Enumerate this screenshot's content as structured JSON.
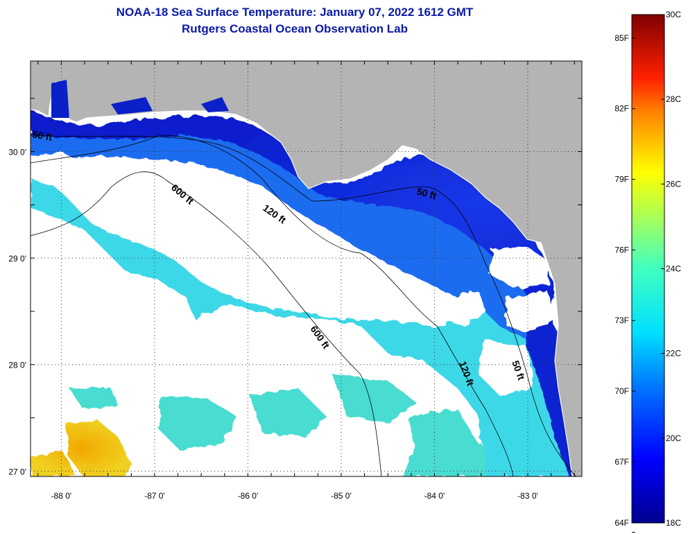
{
  "title": "NOAA-18 Sea Surface Temperature:  January 07, 2022 1612 GMT",
  "subtitle": "Rutgers Coastal Ocean Observation Lab",
  "map": {
    "lat_labels": [
      {
        "lat": 30,
        "text": "30 0'"
      },
      {
        "lat": 29,
        "text": "29 0'"
      },
      {
        "lat": 28,
        "text": "28 0'"
      },
      {
        "lat": 27,
        "text": "27 0'"
      }
    ],
    "lon_labels": [
      {
        "lon": -88,
        "text": "-88 0'"
      },
      {
        "lon": -87,
        "text": "-87 0'"
      },
      {
        "lon": -86,
        "text": "-86 0'"
      },
      {
        "lon": -85,
        "text": "-85 0'"
      },
      {
        "lon": -84,
        "text": "-84 0'"
      },
      {
        "lon": -83,
        "text": "-83 0'"
      }
    ],
    "lon_range": [
      -88.33,
      -82.42
    ],
    "lat_range": [
      26.95,
      30.85
    ],
    "contour_labels": [
      "50 ft",
      "120 ft",
      "600 ft",
      "600 ft",
      "120 ft",
      "50 ft",
      "50 ft"
    ]
  },
  "colorbar": {
    "min_c": 18,
    "max_c": 30,
    "celsius_labels": [
      {
        "v": 30,
        "text": "30C"
      },
      {
        "v": 28,
        "text": "28C"
      },
      {
        "v": 26,
        "text": "26C"
      },
      {
        "v": 24,
        "text": "24C"
      },
      {
        "v": 22,
        "text": "22C"
      },
      {
        "v": 20,
        "text": "20C"
      },
      {
        "v": 18,
        "text": "18C"
      }
    ],
    "fahrenheit_labels": [
      {
        "v": 85,
        "text": "85F"
      },
      {
        "v": 82,
        "text": "82F"
      },
      {
        "v": 79,
        "text": "79F"
      },
      {
        "v": 76,
        "text": "76F"
      },
      {
        "v": 73,
        "text": "73F"
      },
      {
        "v": 70,
        "text": "70F"
      },
      {
        "v": 67,
        "text": "67F"
      },
      {
        "v": 64,
        "text": "64F"
      }
    ]
  },
  "colors": {
    "land": "#b4b4b4",
    "cloud": "#ffffff",
    "title": "#0a1aa8"
  }
}
